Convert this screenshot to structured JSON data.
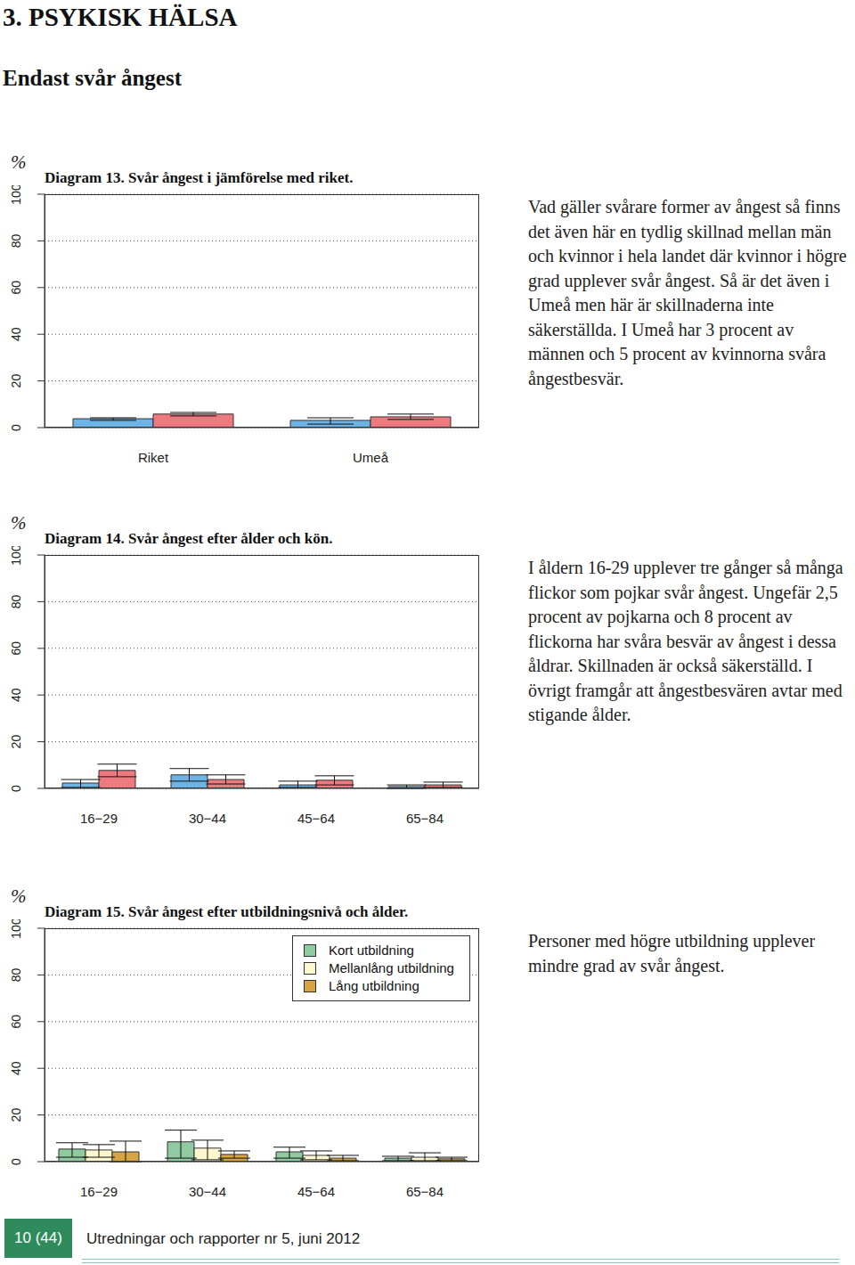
{
  "page_title": "3. PSYKISK HÄLSA",
  "section_title": "Endast svår ångest",
  "chart_data": [
    {
      "type": "bar",
      "title": "Diagram 13. Svår ångest i jämförelse med riket.",
      "ylabel": "%",
      "categories": [
        "Riket",
        "Umeå"
      ],
      "series": [
        {
          "color": "#6cb4e6",
          "values": [
            3.8,
            3.1
          ],
          "errors": [
            [
              3.1,
              4.2
            ],
            [
              1.5,
              4.2
            ]
          ]
        },
        {
          "color": "#ee7a80",
          "values": [
            5.8,
            4.6
          ],
          "errors": [
            [
              5.0,
              6.5
            ],
            [
              3.5,
              5.8
            ]
          ]
        }
      ],
      "ylim": [
        0,
        100
      ],
      "yticks": [
        0,
        20,
        40,
        60,
        80,
        100
      ],
      "grid": true
    },
    {
      "type": "bar",
      "title": "Diagram 14. Svår ångest efter ålder och kön.",
      "ylabel": "%",
      "categories": [
        "16−29",
        "30−44",
        "45−64",
        "65−84"
      ],
      "series": [
        {
          "color": "#6cb4e6",
          "values": [
            2.3,
            5.8,
            1.5,
            0.8
          ],
          "errors": [
            [
              0.4,
              3.8
            ],
            [
              3.1,
              8.5
            ],
            [
              0.4,
              3.1
            ],
            [
              0,
              1.5
            ]
          ]
        },
        {
          "color": "#ee7a80",
          "values": [
            7.7,
            3.8,
            3.5,
            1.5
          ],
          "errors": [
            [
              5.0,
              10.4
            ],
            [
              1.9,
              5.8
            ],
            [
              1.5,
              5.4
            ],
            [
              0.4,
              2.7
            ]
          ]
        }
      ],
      "ylim": [
        0,
        100
      ],
      "yticks": [
        0,
        20,
        40,
        60,
        80,
        100
      ],
      "grid": true
    },
    {
      "type": "bar",
      "title": "Diagram 15. Svår ångest efter utbildningsnivå och ålder.",
      "ylabel": "%",
      "categories": [
        "16−29",
        "30−44",
        "45−64",
        "65−84"
      ],
      "series": [
        {
          "name": "Kort utbildning",
          "color": "#8fcaa0",
          "values": [
            5.4,
            8.5,
            4.2,
            1.5
          ],
          "errors": [
            [
              1.9,
              8.1
            ],
            [
              1.5,
              13.5
            ],
            [
              1.5,
              6.2
            ],
            [
              0.4,
              2.3
            ]
          ]
        },
        {
          "name": "Mellanlång utbildning",
          "color": "#fdf7cf",
          "values": [
            5.0,
            5.8,
            2.7,
            1.9
          ],
          "errors": [
            [
              1.9,
              7.3
            ],
            [
              0.8,
              9.2
            ],
            [
              0.8,
              4.6
            ],
            [
              0.4,
              3.8
            ]
          ]
        },
        {
          "name": "Lång utbildning",
          "color": "#d6a542",
          "values": [
            4.2,
            3.1,
            1.5,
            1.2
          ],
          "errors": [
            [
              0,
              8.8
            ],
            [
              1.5,
              4.6
            ],
            [
              0.4,
              2.7
            ],
            [
              0.4,
              1.9
            ]
          ]
        }
      ],
      "ylim": [
        0,
        100
      ],
      "yticks": [
        0,
        20,
        40,
        60,
        80,
        100
      ],
      "grid": true,
      "legend": "top right"
    }
  ],
  "texts": [
    "Vad gäller svårare former av ångest så finns det även här en tydlig skillnad mellan män och kvinnor i hela landet där kvinnor i högre grad upplever svår ångest. Så är det även i Umeå men här är skillnaderna inte säkerställda. I Umeå har 3 procent av männen och 5 procent av kvinnorna svåra ångestbesvär.",
    "I åldern 16-29 upplever tre gånger så många flickor som pojkar svår ångest. Ungefär 2,5 procent av pojkarna och 8 procent av flickorna har svåra besvär av ångest i dessa åldrar. Skillnaden är också säkerställd. I övrigt framgår att ångestbesvären avtar med stigande ålder.",
    "Personer med högre utbildning upplever mindre grad av svår ångest."
  ],
  "footer": {
    "page": "10 (44)",
    "text": "Utredningar och rapporter nr 5, juni 2012"
  }
}
